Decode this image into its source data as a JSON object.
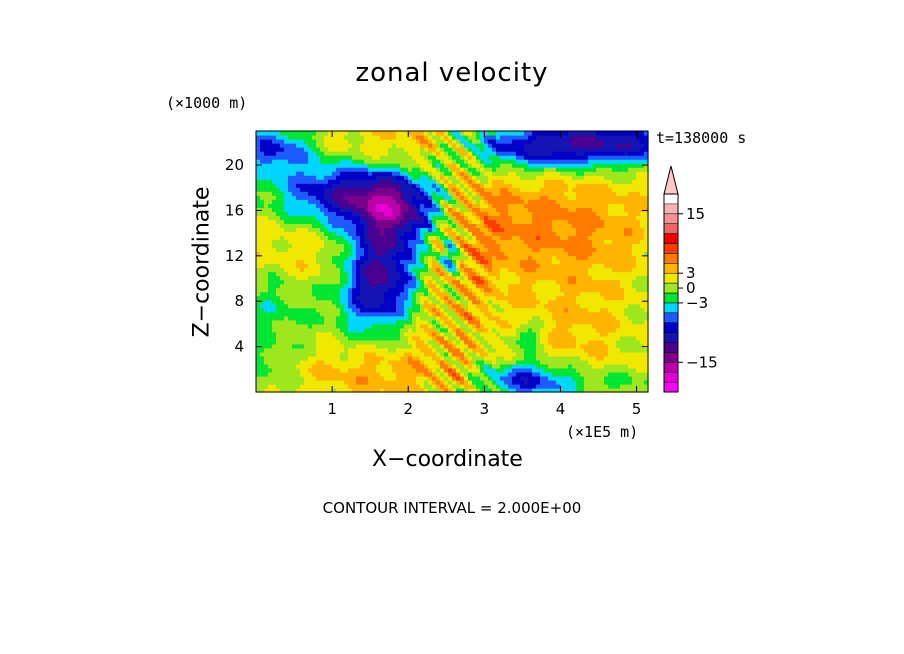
{
  "chart_data": {
    "type": "heatmap",
    "title": "zonal velocity",
    "xlabel": "X−coordinate",
    "ylabel": "Z−coordinate",
    "x_unit": "(×1E5 m)",
    "y_unit": "(×1000 m)",
    "time_label": "t=138000 s",
    "footer": "CONTOUR INTERVAL = 2.000E+00",
    "xlim": [
      0,
      5.15
    ],
    "ylim": [
      0,
      23
    ],
    "x_ticks": [
      1,
      2,
      3,
      4,
      5
    ],
    "y_ticks": [
      4,
      8,
      12,
      16,
      20
    ],
    "contour_interval": 2,
    "colorbar": {
      "levels": [
        -19,
        -17,
        -15,
        -13,
        -11,
        -9,
        -7,
        -5,
        -3,
        -1,
        1,
        3,
        5,
        7,
        9,
        11,
        13,
        15,
        17,
        19
      ],
      "colors": [
        "#ff00ff",
        "#e600d6",
        "#bb00aa",
        "#7a008c",
        "#4a0090",
        "#1414b4",
        "#0000c8",
        "#1e5aff",
        "#00d6ff",
        "#00e632",
        "#9ee61e",
        "#f0e800",
        "#ffb400",
        "#ff7a00",
        "#ff3c00",
        "#f00000",
        "#f06464",
        "#f49191",
        "#f8b4b4",
        "#ffc8c8"
      ],
      "tick_labels": [
        "15",
        "3",
        "0",
        "−3",
        "−15"
      ],
      "tick_values": [
        15,
        3,
        0,
        -3,
        -15
      ],
      "extend": "max"
    },
    "field_features": [
      {
        "x": 2.55,
        "z": 14.0,
        "sx": 0.6,
        "sz": 9.0,
        "u": 3.5
      },
      {
        "x": 2.1,
        "z": 21.5,
        "sx": 0.9,
        "sz": 1.8,
        "u": 4.5
      },
      {
        "x": 3.6,
        "z": 15.0,
        "sx": 0.7,
        "sz": 3.5,
        "u": 3.2
      },
      {
        "x": 4.5,
        "z": 14.0,
        "sx": 0.6,
        "sz": 4.0,
        "u": 2.8
      },
      {
        "x": 1.5,
        "z": 1.5,
        "sx": 0.8,
        "sz": 1.5,
        "u": 3.0
      },
      {
        "x": 4.3,
        "z": 5.5,
        "sx": 0.6,
        "sz": 2.5,
        "u": 2.5
      },
      {
        "x": 0.5,
        "z": 13.0,
        "sx": 0.5,
        "sz": 3.0,
        "u": 2.0
      },
      {
        "x": 1.3,
        "z": 17.5,
        "sx": 0.7,
        "sz": 2.0,
        "u": -12.0
      },
      {
        "x": 1.75,
        "z": 12.5,
        "sx": 0.35,
        "sz": 3.5,
        "u": -10.0
      },
      {
        "x": 1.55,
        "z": 9.0,
        "sx": 0.3,
        "sz": 2.5,
        "u": -7.0
      },
      {
        "x": 2.0,
        "z": 16.0,
        "sx": 0.4,
        "sz": 2.0,
        "u": -6.0
      },
      {
        "x": 4.3,
        "z": 22.0,
        "sx": 1.3,
        "sz": 1.3,
        "u": -12.0
      },
      {
        "x": 3.3,
        "z": 20.5,
        "sx": 0.9,
        "sz": 1.4,
        "u": -4.0
      },
      {
        "x": 0.25,
        "z": 21.5,
        "sx": 0.35,
        "sz": 1.5,
        "u": -8.0
      },
      {
        "x": 2.55,
        "z": 12.0,
        "sx": 0.08,
        "sz": 1.2,
        "u": -9.0
      },
      {
        "x": 3.5,
        "z": 1.2,
        "sx": 0.4,
        "sz": 1.2,
        "u": -8.0
      },
      {
        "x": 3.55,
        "z": 5.0,
        "sx": 0.15,
        "sz": 0.8,
        "u": -5.0
      },
      {
        "x": 4.35,
        "z": 0.8,
        "sx": 0.7,
        "sz": 0.8,
        "u": -2.5
      },
      {
        "x": 0.1,
        "z": 2.0,
        "sx": 0.3,
        "sz": 2.0,
        "u": -2.5
      },
      {
        "x": 1.3,
        "z": 7.5,
        "sx": 0.8,
        "sz": 1.5,
        "u": -1.5
      },
      {
        "x": 5.0,
        "z": 6.0,
        "sx": 0.3,
        "sz": 3.0,
        "u": -1.0
      },
      {
        "x": 0.2,
        "z": 8.0,
        "sx": 0.3,
        "sz": 2.5,
        "u": -2.5
      }
    ]
  }
}
